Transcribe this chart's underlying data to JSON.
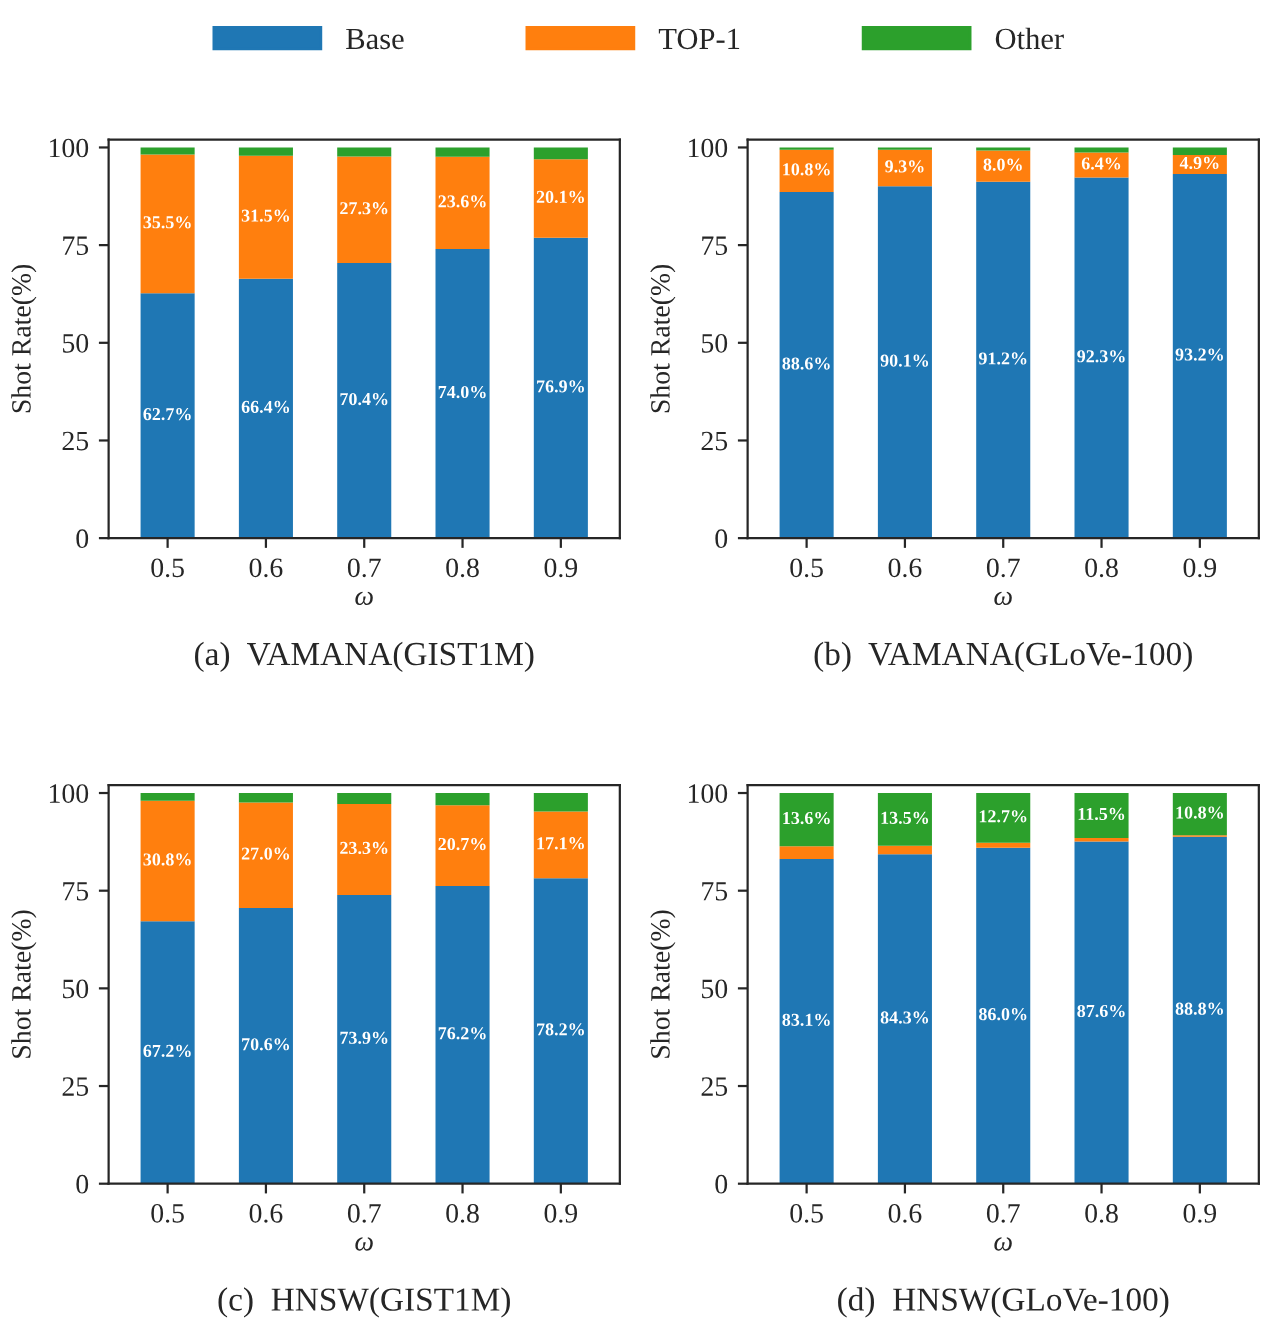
{
  "chart_data": [
    {
      "type": "bar",
      "stacked": true,
      "title": "(a)  VAMANA(GIST1M)",
      "xlabel": "ω",
      "ylabel": "Shot Rate(%)",
      "categories": [
        "0.5",
        "0.6",
        "0.7",
        "0.8",
        "0.9"
      ],
      "ylim": [
        0,
        102
      ],
      "yticks": [
        0,
        25,
        50,
        75,
        100
      ],
      "legend": "top",
      "series": [
        {
          "name": "Base",
          "color": "#1f77b4",
          "values": [
            62.7,
            66.4,
            70.4,
            74.0,
            76.9
          ],
          "value_labels": [
            "62.7%",
            "66.4%",
            "70.4%",
            "74.0%",
            "76.9%"
          ]
        },
        {
          "name": "TOP-1",
          "color": "#ff7f0e",
          "values": [
            35.5,
            31.5,
            27.3,
            23.6,
            20.1
          ],
          "value_labels": [
            "35.5%",
            "31.5%",
            "27.3%",
            "23.6%",
            "20.1%"
          ]
        },
        {
          "name": "Other",
          "color": "#2ca02c",
          "values": [
            1.8,
            2.1,
            2.3,
            2.4,
            3.0
          ]
        }
      ]
    },
    {
      "type": "bar",
      "stacked": true,
      "title": "(b)  VAMANA(GLoVe-100)",
      "xlabel": "ω",
      "ylabel": "Shot Rate(%)",
      "categories": [
        "0.5",
        "0.6",
        "0.7",
        "0.8",
        "0.9"
      ],
      "ylim": [
        0,
        102
      ],
      "yticks": [
        0,
        25,
        50,
        75,
        100
      ],
      "series": [
        {
          "color": "#1f77b4",
          "values": [
            88.6,
            90.1,
            91.2,
            92.3,
            93.2
          ],
          "value_labels": [
            "88.6%",
            "90.1%",
            "91.2%",
            "92.3%",
            "93.2%"
          ]
        },
        {
          "color": "#ff7f0e",
          "values": [
            10.8,
            9.3,
            8.0,
            6.4,
            4.9
          ],
          "value_labels": [
            "10.8%",
            "9.3%",
            "8.0%",
            "6.4%",
            "4.9%"
          ]
        },
        {
          "color": "#2ca02c",
          "values": [
            0.6,
            0.6,
            0.8,
            1.3,
            1.9
          ]
        }
      ]
    },
    {
      "type": "bar",
      "stacked": true,
      "title": "(c)  HNSW(GIST1M)",
      "xlabel": "ω",
      "ylabel": "Shot Rate(%)",
      "categories": [
        "0.5",
        "0.6",
        "0.7",
        "0.8",
        "0.9"
      ],
      "ylim": [
        0,
        102
      ],
      "yticks": [
        0,
        25,
        50,
        75,
        100
      ],
      "series": [
        {
          "color": "#1f77b4",
          "values": [
            67.2,
            70.6,
            73.9,
            76.2,
            78.2
          ],
          "value_labels": [
            "67.2%",
            "70.6%",
            "73.9%",
            "76.2%",
            "78.2%"
          ]
        },
        {
          "color": "#ff7f0e",
          "values": [
            30.8,
            27.0,
            23.3,
            20.7,
            17.1
          ],
          "value_labels": [
            "30.8%",
            "27.0%",
            "23.3%",
            "20.7%",
            "17.1%"
          ]
        },
        {
          "color": "#2ca02c",
          "values": [
            2.0,
            2.4,
            2.8,
            3.1,
            4.7
          ]
        }
      ]
    },
    {
      "type": "bar",
      "stacked": true,
      "title": "(d)  HNSW(GLoVe-100)",
      "xlabel": "ω",
      "ylabel": "Shot Rate(%)",
      "categories": [
        "0.5",
        "0.6",
        "0.7",
        "0.8",
        "0.9"
      ],
      "ylim": [
        0,
        102
      ],
      "yticks": [
        0,
        25,
        50,
        75,
        100
      ],
      "series": [
        {
          "color": "#1f77b4",
          "values": [
            83.1,
            84.3,
            86.0,
            87.6,
            88.8
          ],
          "value_labels": [
            "83.1%",
            "84.3%",
            "86.0%",
            "87.6%",
            "88.8%"
          ]
        },
        {
          "color": "#ff7f0e",
          "values": [
            3.3,
            2.2,
            1.3,
            0.9,
            0.4
          ]
        },
        {
          "color": "#2ca02c",
          "values": [
            13.6,
            13.5,
            12.7,
            11.5,
            10.8
          ],
          "value_labels": [
            "13.6%",
            "13.5%",
            "12.7%",
            "11.5%",
            "10.8%"
          ]
        }
      ]
    }
  ]
}
